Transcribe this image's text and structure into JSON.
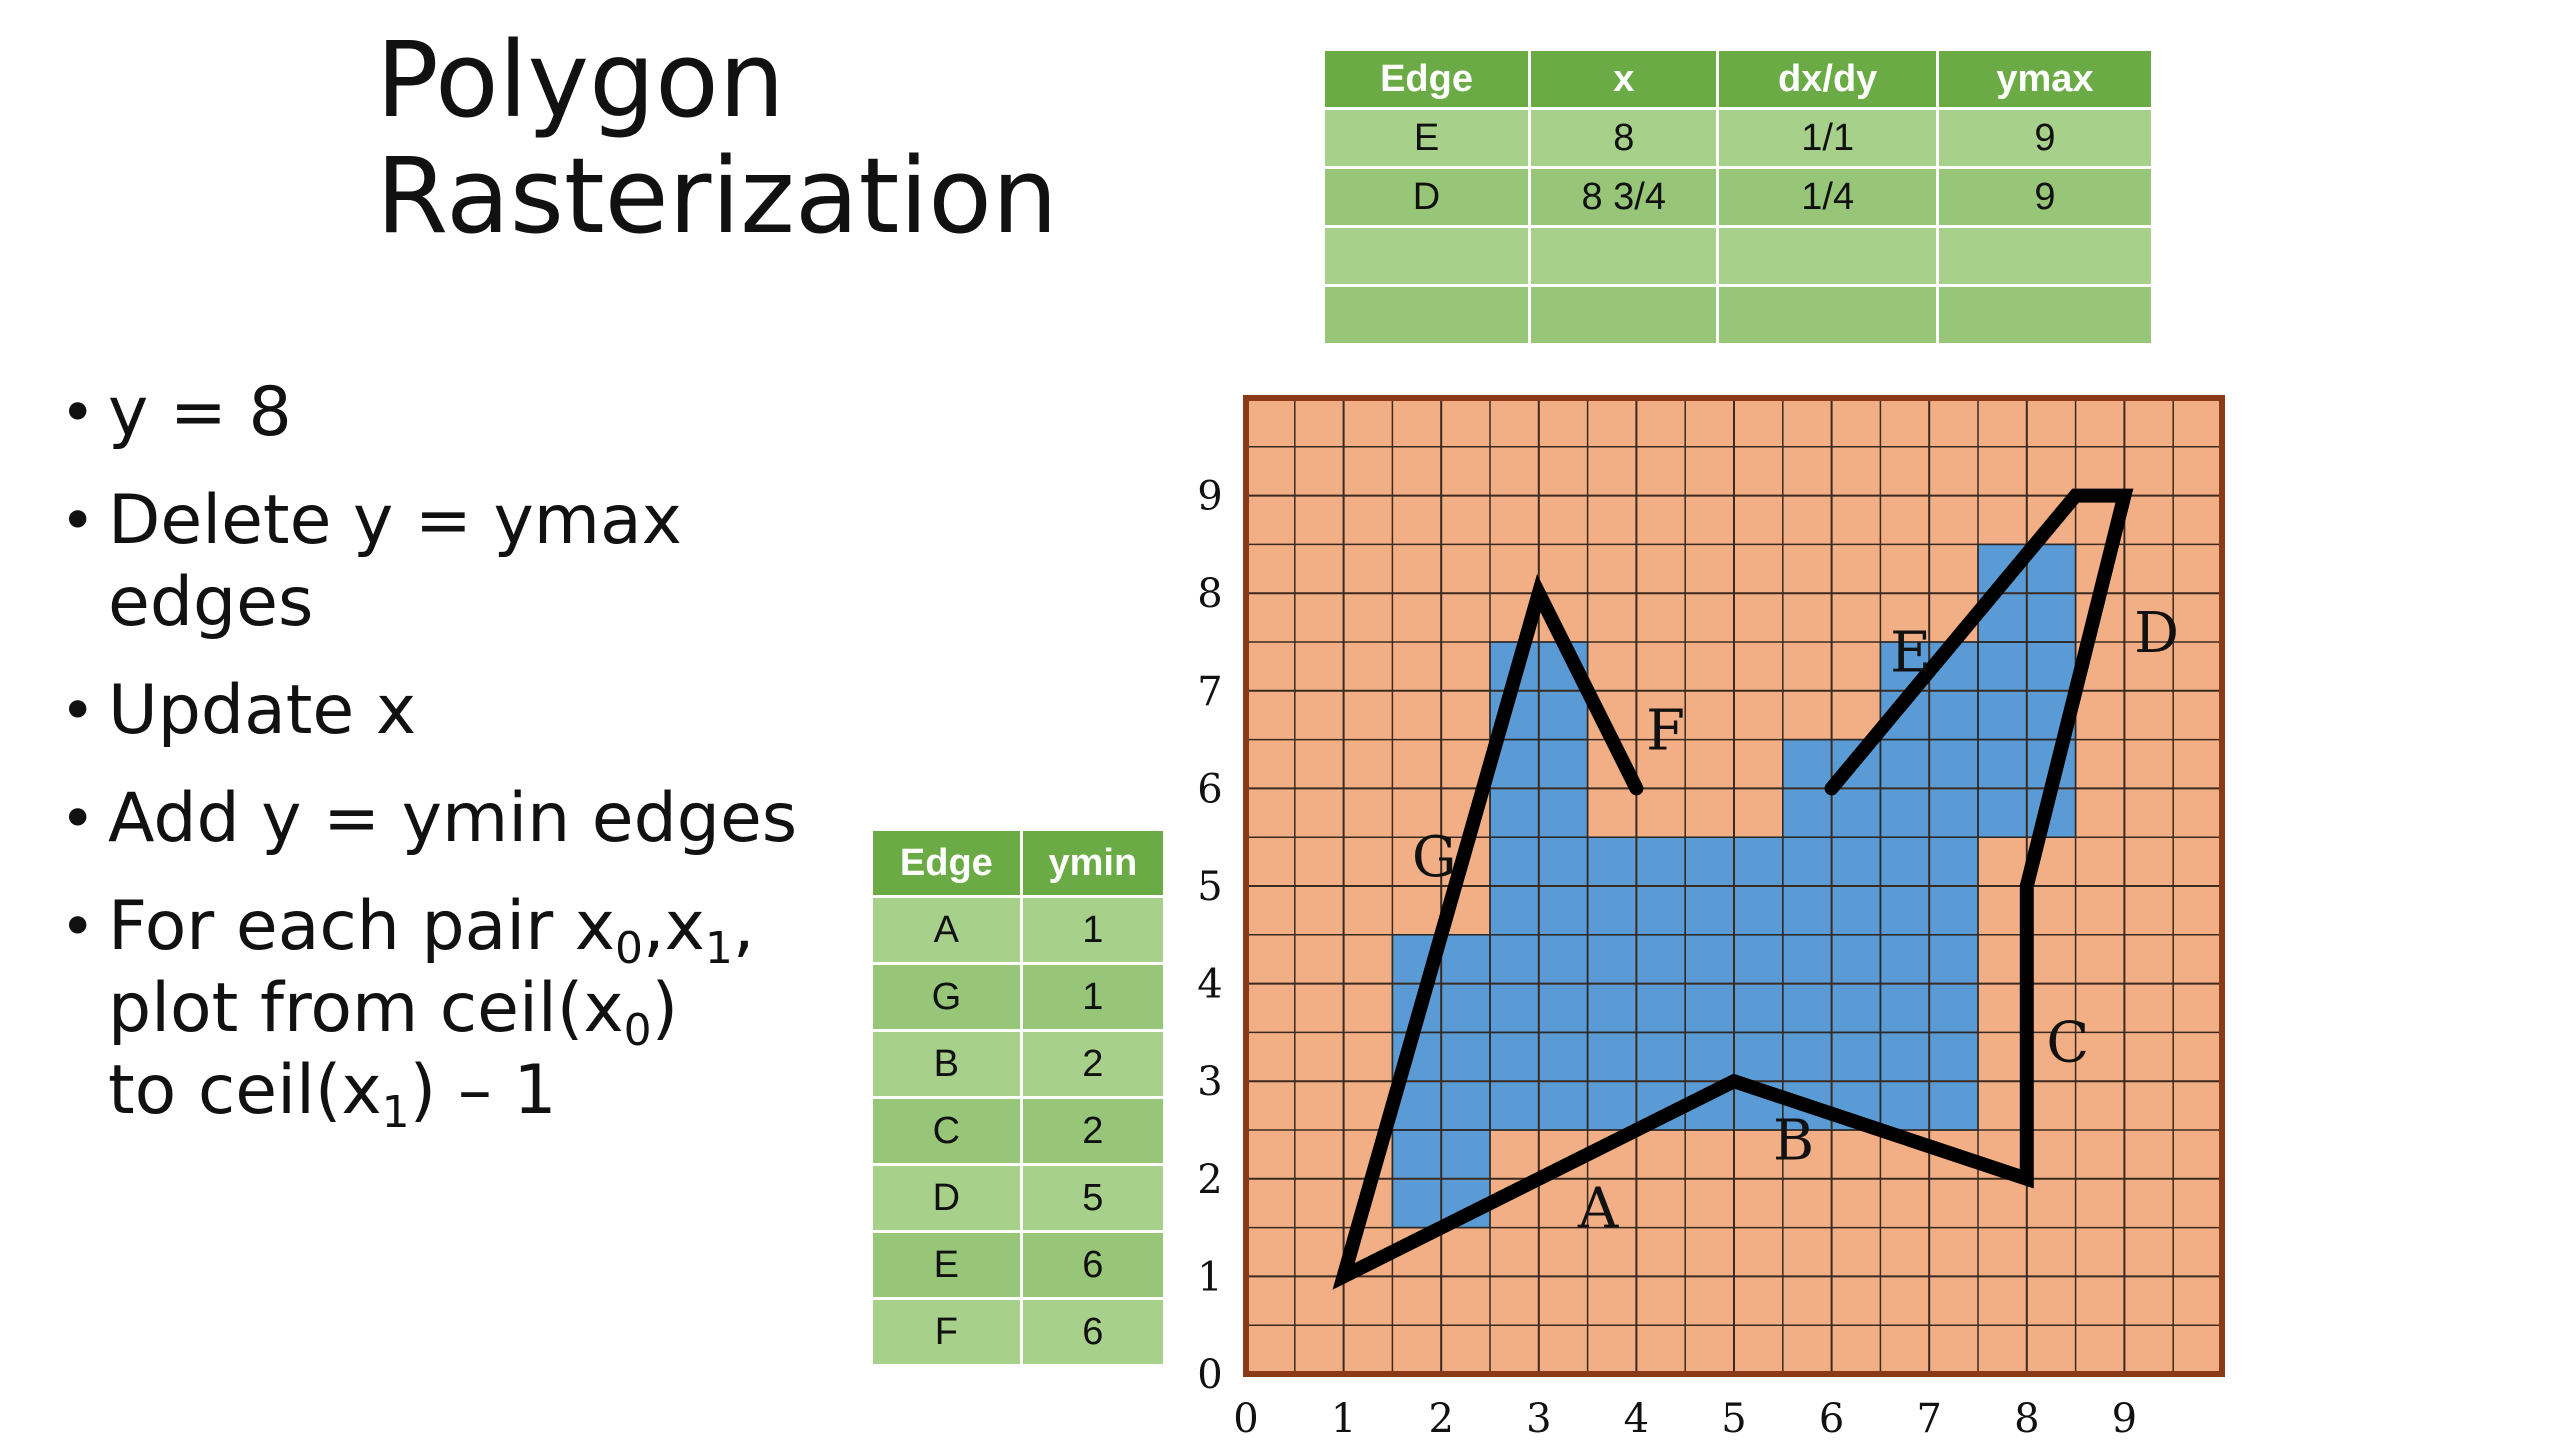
{
  "title": {
    "line1": "Polygon",
    "line2": "Rasterization"
  },
  "bullets": {
    "b1": "y = 8",
    "b2_line1": "Delete y = ymax",
    "b2_line2": "edges",
    "b3": "Update x",
    "b4": "Add y = ymin edges",
    "b5": {
      "pre": "For each pair x",
      "sub0": "0",
      "mid": ",x",
      "sub1": "1",
      "post": ",",
      "line2_pre": "plot from ceil(x",
      "line2_sub": "0",
      "line2_post": ")",
      "line3_pre": "to ceil(x",
      "line3_sub": "1",
      "line3_post": ") – 1"
    }
  },
  "active_edge_table": {
    "headers": [
      "Edge",
      "x",
      "dx/dy",
      "ymax"
    ],
    "rows": [
      [
        "E",
        "8",
        "1/1",
        "9"
      ],
      [
        "D",
        "8 3/4",
        "1/4",
        "9"
      ],
      [
        "",
        "",
        "",
        ""
      ],
      [
        "",
        "",
        "",
        ""
      ]
    ]
  },
  "edge_table": {
    "headers": [
      "Edge",
      "ymin"
    ],
    "rows": [
      [
        "A",
        "1"
      ],
      [
        "G",
        "1"
      ],
      [
        "B",
        "2"
      ],
      [
        "C",
        "2"
      ],
      [
        "D",
        "5"
      ],
      [
        "E",
        "6"
      ],
      [
        "F",
        "6"
      ]
    ]
  },
  "colors": {
    "grid_fill": "#f2ae84",
    "grid_border": "#8b3a17",
    "pixel_fill": "#5b9bd5",
    "polygon_stroke": "#000000",
    "header_green": "#6aab45",
    "cell_green": "#a7d08a"
  },
  "chart_data": {
    "type": "diagram",
    "x_ticks": [
      "0",
      "1",
      "2",
      "3",
      "4",
      "5",
      "6",
      "7",
      "8",
      "9"
    ],
    "y_ticks": [
      "0",
      "1",
      "2",
      "3",
      "4",
      "5",
      "6",
      "7",
      "8",
      "9"
    ],
    "axis_range": {
      "x": [
        0,
        10
      ],
      "y": [
        0,
        10
      ]
    },
    "polygon_path": [
      [
        6,
        6
      ],
      [
        8.5,
        9
      ],
      [
        9,
        9
      ],
      [
        8,
        5
      ],
      [
        8,
        2
      ],
      [
        5,
        3
      ],
      [
        1,
        1
      ],
      [
        3,
        8
      ],
      [
        4,
        6
      ]
    ],
    "edge_labels": [
      {
        "label": "A",
        "x": 3.4,
        "y": 1.5
      },
      {
        "label": "B",
        "x": 5.4,
        "y": 2.2
      },
      {
        "label": "C",
        "x": 8.2,
        "y": 3.2
      },
      {
        "label": "D",
        "x": 9.1,
        "y": 7.4
      },
      {
        "label": "E",
        "x": 6.6,
        "y": 7.2
      },
      {
        "label": "F",
        "x": 4.1,
        "y": 6.4
      },
      {
        "label": "G",
        "x": 1.7,
        "y": 5.1
      }
    ],
    "filled_pixels": [
      {
        "x": 1.5,
        "y": 1.5,
        "w": 1,
        "h": 1
      },
      {
        "x": 1.5,
        "y": 2.5,
        "w": 6,
        "h": 2
      },
      {
        "x": 2.5,
        "y": 4.5,
        "w": 5,
        "h": 1
      },
      {
        "x": 2.5,
        "y": 5.5,
        "w": 1,
        "h": 2
      },
      {
        "x": 5.5,
        "y": 5.5,
        "w": 2,
        "h": 1
      },
      {
        "x": 6.5,
        "y": 6.5,
        "w": 2,
        "h": 1
      },
      {
        "x": 7.5,
        "y": 5.5,
        "w": 1,
        "h": 3
      }
    ]
  }
}
